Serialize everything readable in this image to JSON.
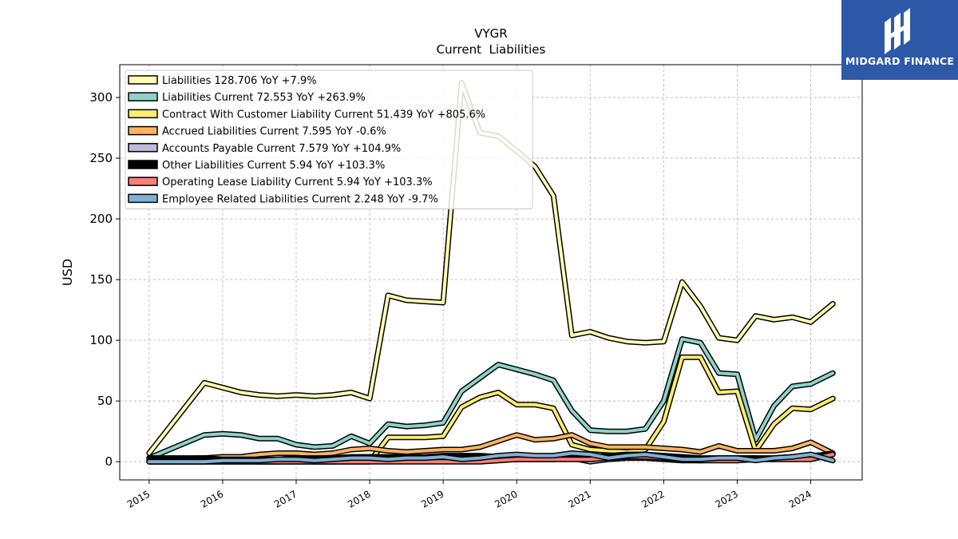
{
  "brand": {
    "name": "MIDGARD FINANCE",
    "bg": "#2e59a8"
  },
  "chart_data": {
    "type": "line",
    "title": "VYGR",
    "subtitle": "Current  Liabilities",
    "xlabel": "",
    "ylabel": "USD",
    "xlim": [
      2014.6,
      2024.7
    ],
    "ylim": [
      -15,
      327
    ],
    "x_ticks": [
      2015,
      2016,
      2017,
      2018,
      2019,
      2020,
      2021,
      2022,
      2023,
      2024
    ],
    "x_tick_labels": [
      "2015",
      "2016",
      "2017",
      "2018",
      "2019",
      "2020",
      "2021",
      "2022",
      "2023",
      "2024"
    ],
    "y_ticks": [
      0,
      50,
      100,
      150,
      200,
      250,
      300
    ],
    "y_tick_labels": [
      "0",
      "50",
      "100",
      "150",
      "200",
      "250",
      "300"
    ],
    "grid": true,
    "legend_position": "top-left",
    "x": [
      2015.0,
      2015.75,
      2016.0,
      2016.25,
      2016.5,
      2016.75,
      2017.0,
      2017.25,
      2017.5,
      2017.75,
      2018.0,
      2018.25,
      2018.5,
      2018.75,
      2019.0,
      2019.25,
      2019.5,
      2019.75,
      2020.0,
      2020.25,
      2020.5,
      2020.75,
      2021.0,
      2021.25,
      2021.5,
      2021.75,
      2022.0,
      2022.25,
      2022.5,
      2022.75,
      2023.0,
      2023.25,
      2023.5,
      2023.75,
      2024.0,
      2024.3
    ],
    "series": [
      {
        "name": "Liabilities  128.706 YoY +7.9%",
        "color": "#ffffb3",
        "values": [
          7,
          65,
          61,
          57,
          55,
          54,
          55,
          54,
          55,
          57,
          52,
          137,
          133,
          132,
          131,
          312,
          271,
          268,
          256,
          243,
          219,
          104,
          107,
          102,
          99,
          98,
          99,
          148,
          128,
          102,
          100,
          120,
          117,
          119,
          115,
          130
        ]
      },
      {
        "name": "Liabilities Current  72.553 YoY +263.9%",
        "color": "#8dd3c7",
        "values": [
          3,
          22,
          23,
          22,
          19,
          19,
          14,
          12,
          13,
          21,
          15,
          31,
          29,
          30,
          32,
          58,
          69,
          80,
          76,
          72,
          67,
          42,
          26,
          25,
          25,
          27,
          50,
          101,
          98,
          73,
          72,
          18,
          46,
          62,
          64,
          73
        ]
      },
      {
        "name": "Contract With Customer Liability Current  51.439 YoY +805.6%",
        "color": "#ffed6f",
        "values": [
          0,
          0,
          0,
          0,
          0,
          0,
          0,
          0,
          0,
          0,
          0,
          20,
          20,
          20,
          21,
          45,
          53,
          57,
          47,
          47,
          44,
          14,
          10,
          9,
          8,
          10,
          33,
          86,
          86,
          57,
          58,
          9,
          31,
          44,
          43,
          52
        ]
      },
      {
        "name": "Accrued Liabilities Current  7.595 YoY -0.6%",
        "color": "#fdb462",
        "values": [
          2,
          3,
          4,
          4,
          6,
          7,
          7,
          6,
          7,
          10,
          11,
          9,
          8,
          9,
          10,
          10,
          12,
          17,
          22,
          18,
          19,
          22,
          15,
          12,
          12,
          12,
          11,
          10,
          8,
          13,
          9,
          9,
          9,
          11,
          16,
          7
        ]
      },
      {
        "name": "Accounts Payable Current  7.579 YoY +104.9%",
        "color": "#bebada",
        "values": [
          1,
          1,
          1,
          1,
          0,
          0,
          1,
          0,
          0,
          1,
          2,
          1,
          1,
          1,
          1,
          1,
          2,
          2,
          2,
          2,
          2,
          3,
          0,
          2,
          3,
          3,
          2,
          1,
          1,
          2,
          3,
          3,
          2,
          3,
          4,
          7
        ]
      },
      {
        "name": "Other Liabilities Current  5.94 YoY +103.3%",
        "color": "#000000",
        "values": [
          3,
          3,
          2,
          2,
          2,
          2,
          3,
          3,
          3,
          4,
          4,
          4,
          4,
          4,
          5,
          5,
          5,
          4,
          3,
          3,
          2,
          3,
          4,
          5,
          6,
          6,
          5,
          4,
          3,
          3,
          3,
          3,
          3,
          4,
          5,
          6
        ]
      },
      {
        "name": "Operating Lease Liability Current  5.94 YoY +103.3%",
        "color": "#fb8072",
        "values": [
          0,
          0,
          0,
          0,
          0,
          0,
          0,
          0,
          0,
          0,
          0,
          0,
          0,
          0,
          0,
          0,
          0,
          1,
          2,
          2,
          2,
          2,
          2,
          3,
          4,
          4,
          3,
          2,
          1,
          1,
          1,
          2,
          2,
          2,
          2,
          6
        ]
      },
      {
        "name": "Employee Related Liabilities Current  2.248 YoY -9.7%",
        "color": "#80b1d3",
        "values": [
          0,
          0,
          1,
          1,
          1,
          2,
          2,
          1,
          2,
          3,
          3,
          2,
          3,
          3,
          4,
          2,
          3,
          5,
          6,
          5,
          5,
          7,
          6,
          3,
          5,
          6,
          4,
          2,
          2,
          3,
          3,
          1,
          3,
          4,
          6,
          1
        ]
      }
    ]
  }
}
